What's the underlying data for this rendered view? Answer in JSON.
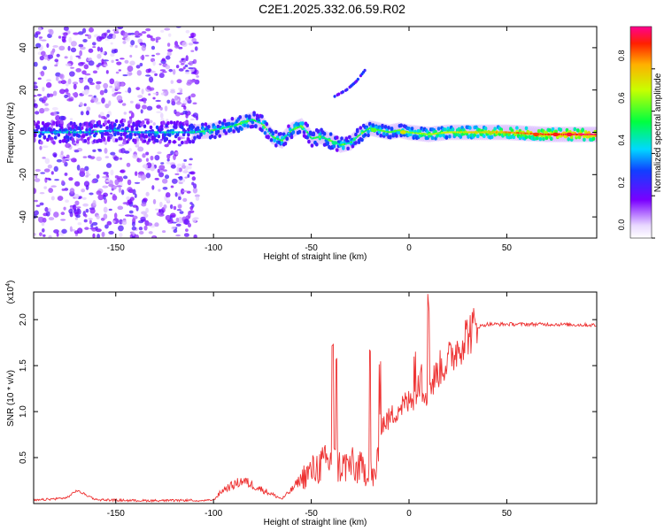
{
  "title": "C2E1.2025.332.06.59.R02",
  "chart_data": [
    {
      "type": "heatmap",
      "xlabel": "Height of straight line (km)",
      "ylabel": "Frequency (Hz)",
      "xlim": [
        -192,
        96
      ],
      "ylim": [
        -50,
        50
      ],
      "xticks": [
        -150,
        -100,
        -50,
        0,
        50
      ],
      "yticks": [
        -40,
        -20,
        0,
        20,
        40
      ],
      "ridge": {
        "x": [
          -192,
          -180,
          -165,
          -150,
          -140,
          -130,
          -120,
          -110,
          -100,
          -90,
          -80,
          -75,
          -70,
          -65,
          -60,
          -55,
          -52,
          -50,
          -45,
          -40,
          -35,
          -30,
          -25,
          -20,
          -15,
          -10,
          -5,
          0,
          10,
          20,
          30,
          50,
          70,
          96
        ],
        "y": [
          0,
          0,
          0,
          1,
          0,
          0,
          0,
          0,
          1,
          3,
          6,
          4,
          -2,
          -4,
          1,
          3,
          0,
          -3,
          -2,
          -4,
          -6,
          -5,
          -1,
          2,
          1,
          0,
          1,
          0,
          -1,
          0,
          0,
          0,
          -1,
          -1
        ]
      },
      "secondary_streak": {
        "x": [
          -38,
          -32,
          -27,
          -22
        ],
        "y": [
          17,
          20,
          24,
          30
        ]
      },
      "colorbar": {
        "label": "Normalized spectral amplitude",
        "range": [
          0,
          1
        ],
        "ticks": [
          "0.0",
          "0.2",
          "0.4",
          "0.6",
          "0.8"
        ]
      }
    },
    {
      "type": "line",
      "xlabel": "Height of straight line (km)",
      "ylabel": "SNR (10 * v/v)",
      "multiplier": "(x10",
      "multiplier_exp": "4",
      "multiplier_close": ")",
      "xlim": [
        -192,
        96
      ],
      "ylim": [
        0,
        23000
      ],
      "xticks": [
        -150,
        -100,
        -50,
        0,
        50
      ],
      "yticks": [
        5000,
        10000,
        15000,
        20000
      ],
      "ytick_labels": [
        "0.5",
        "1.0",
        "1.5",
        "2.0"
      ],
      "color": "#ee3333",
      "series": [
        {
          "x": [
            -192,
            -175,
            -170,
            -160,
            -140,
            -120,
            -110,
            -100,
            -95,
            -90,
            -85,
            -80,
            -75,
            -70,
            -65,
            -60,
            -55,
            -50,
            -45,
            -40,
            -35,
            -30,
            -25,
            -20,
            -17,
            -15,
            -10,
            -5,
            0,
            5,
            10,
            15,
            20,
            25,
            30,
            35,
            40,
            45,
            50,
            70,
            96
          ],
          "y": [
            200,
            500,
            1300,
            300,
            200,
            200,
            250,
            400,
            1500,
            2000,
            2500,
            2000,
            1500,
            1000,
            500,
            1500,
            2800,
            3500,
            4200,
            4500,
            4000,
            4200,
            3800,
            3500,
            2500,
            8500,
            9200,
            10500,
            11000,
            12500,
            12200,
            14500,
            15500,
            17000,
            18500,
            19200,
            19500,
            19500,
            19500,
            19500,
            19400
          ]
        }
      ]
    }
  ]
}
